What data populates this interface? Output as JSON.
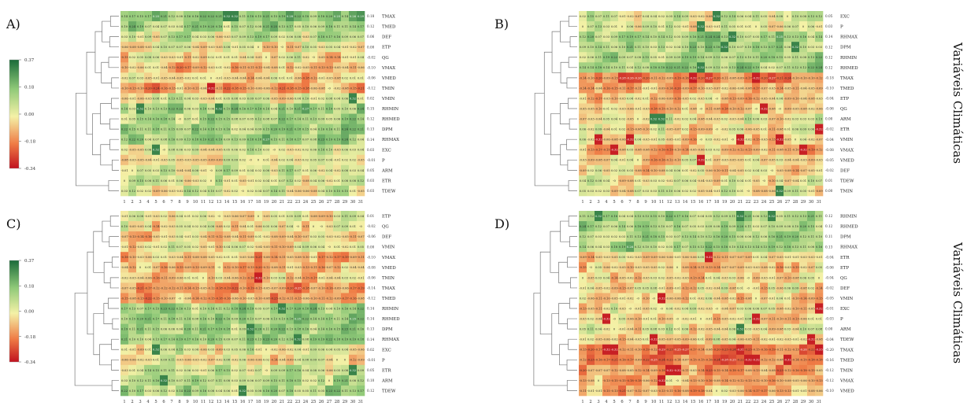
{
  "side_label": "Variáveis Climáticas",
  "chart_data": [
    {
      "type": "heatmap",
      "panel_label": "A)",
      "x_categories": [
        "1",
        "2",
        "3",
        "4",
        "5",
        "6",
        "7",
        "8",
        "9",
        "10",
        "11",
        "12",
        "13",
        "14",
        "15",
        "16",
        "17",
        "18",
        "19",
        "20",
        "21",
        "22",
        "23",
        "24",
        "25",
        "26",
        "27",
        "28",
        "29",
        "30",
        "31"
      ],
      "rows": [
        "TMAX",
        "TMED",
        "DEF",
        "ETP",
        "QG",
        "VMAX",
        "VMED",
        "TMIN",
        "VMIN",
        "RHMIN",
        "RHMED",
        "DPM",
        "RHMAX",
        "EXC",
        "P",
        "ARM",
        "ETR",
        "TDEW"
      ],
      "row_means": [
        0.18,
        0.12,
        0.06,
        0.0,
        -0.02,
        -0.1,
        -0.06,
        -0.12,
        0.02,
        0.15,
        0.12,
        0.13,
        0.14,
        0.03,
        -0.01,
        0.05,
        0.03,
        0.03
      ],
      "colorbar": {
        "ticks": [
          "0.37",
          "0.18",
          "0.00",
          "-0.18",
          "-0.34"
        ],
        "min": -0.34,
        "max": 0.37
      }
    },
    {
      "type": "heatmap",
      "panel_label": "B)",
      "x_categories": [
        "1",
        "2",
        "3",
        "4",
        "5",
        "6",
        "7",
        "8",
        "9",
        "10",
        "11",
        "12",
        "13",
        "14",
        "15",
        "16",
        "17",
        "18",
        "19",
        "20",
        "21",
        "22",
        "23",
        "24",
        "25",
        "26",
        "27",
        "28",
        "29",
        "30",
        "31"
      ],
      "rows": [
        "EXC",
        "P",
        "RHMAX",
        "DPM",
        "RHMIN",
        "RHMED",
        "TMAX",
        "TMED",
        "ETP",
        "QG",
        "ARM",
        "ETR",
        "VMIN",
        "VMAX",
        "VMED",
        "DEF",
        "TDEW",
        "TMIN"
      ],
      "row_means": [
        0.05,
        0.03,
        0.14,
        0.12,
        0.12,
        0.12,
        -0.18,
        -0.1,
        -0.04,
        -0.06,
        0.0,
        -0.02,
        -0.04,
        -0.08,
        -0.05,
        -0.02,
        0.01,
        0.0
      ]
    },
    {
      "type": "heatmap",
      "panel_label": "C)",
      "x_categories": [
        "1",
        "2",
        "3",
        "4",
        "5",
        "6",
        "7",
        "8",
        "9",
        "10",
        "11",
        "12",
        "13",
        "14",
        "15",
        "16",
        "17",
        "18",
        "19",
        "20",
        "21",
        "22",
        "23",
        "24",
        "25",
        "26",
        "27",
        "28",
        "29",
        "30",
        "31"
      ],
      "rows": [
        "ETP",
        "QG",
        "DEF",
        "VMIN",
        "VMAX",
        "VMED",
        "TMIN",
        "TMAX",
        "TMED",
        "RHMIN",
        "RHMED",
        "DPM",
        "RHMAX",
        "EXC",
        "P",
        "ETR",
        "ARM",
        "TDEW"
      ],
      "row_means": [
        0.01,
        -0.02,
        -0.06,
        0.0,
        -0.1,
        -0.08,
        -0.06,
        -0.14,
        -0.12,
        0.14,
        0.14,
        0.13,
        0.14,
        0.02,
        -0.01,
        0.05,
        0.1,
        0.12
      ],
      "colorbar": {
        "ticks": [
          "0.37",
          "0.18",
          "0.00",
          "-0.18",
          "-0.34"
        ],
        "min": -0.34,
        "max": 0.37
      }
    },
    {
      "type": "heatmap",
      "panel_label": "D)",
      "x_categories": [
        "1",
        "2",
        "3",
        "4",
        "5",
        "6",
        "7",
        "8",
        "9",
        "10",
        "11",
        "12",
        "13",
        "14",
        "15",
        "16",
        "17",
        "18",
        "19",
        "20",
        "21",
        "22",
        "23",
        "24",
        "25",
        "26",
        "27",
        "28",
        "29",
        "30",
        "31"
      ],
      "rows": [
        "RHMIN",
        "RHMED",
        "DPM",
        "RHMAX",
        "ETR",
        "ETP",
        "QG",
        "DEF",
        "VMIN",
        "EXC",
        "P",
        "ARM",
        "TDEW",
        "TMAX",
        "TMED",
        "TMIN",
        "VMAX",
        "VMED"
      ],
      "row_means": [
        0.12,
        0.12,
        0.11,
        0.13,
        -0.04,
        -0.06,
        -0.04,
        -0.02,
        -0.05,
        -0.01,
        -0.03,
        0.0,
        -0.04,
        -0.2,
        -0.16,
        -0.12,
        -0.12,
        -0.1
      ]
    }
  ]
}
